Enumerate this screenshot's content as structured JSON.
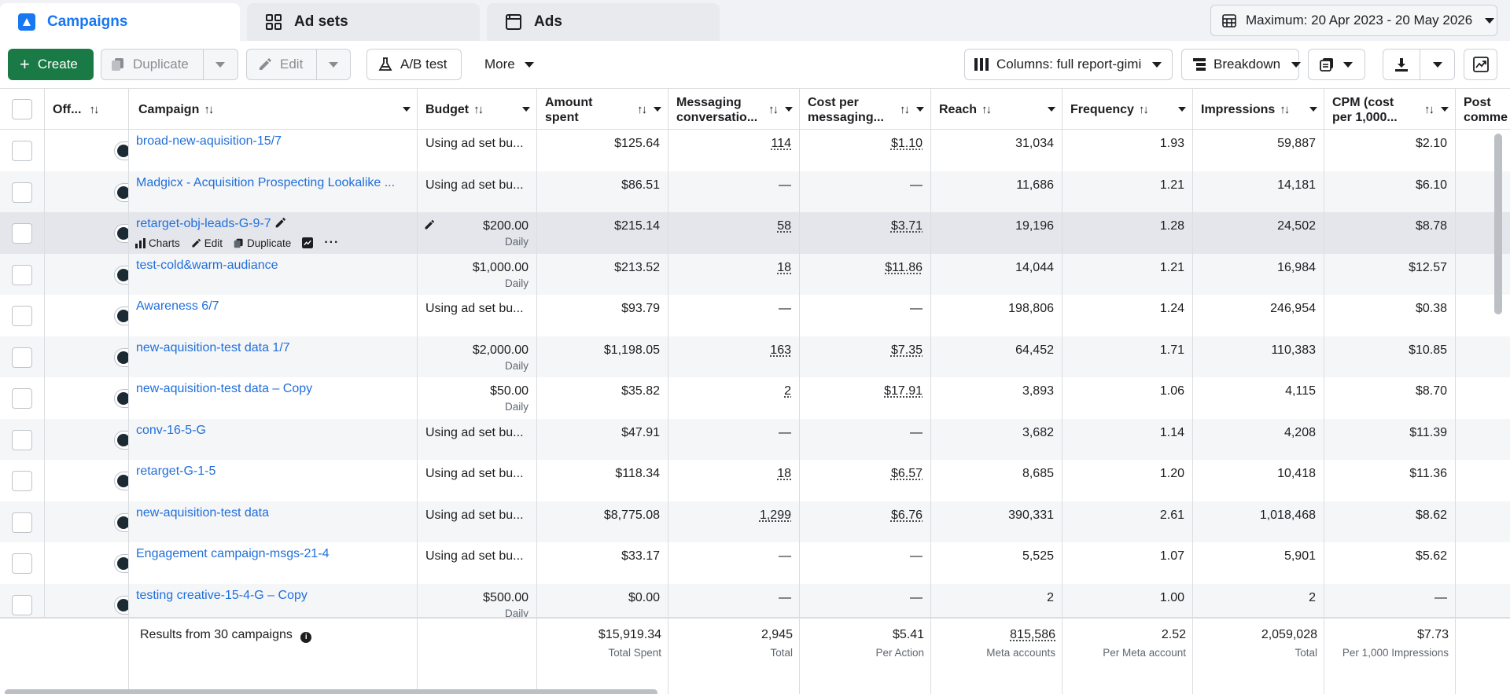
{
  "tabs": [
    {
      "label": "Campaigns",
      "icon": "campaign-icon",
      "active": true
    },
    {
      "label": "Ad sets",
      "icon": "ad-sets-grid-icon",
      "active": false
    },
    {
      "label": "Ads",
      "icon": "ads-window-icon",
      "active": false
    }
  ],
  "date_range": "Maximum: 20 Apr 2023 - 20 May 2026",
  "toolbar": {
    "create": "Create",
    "duplicate": "Duplicate",
    "edit": "Edit",
    "ab_test": "A/B test",
    "more": "More",
    "columns": "Columns: full report-gimi",
    "breakdown": "Breakdown"
  },
  "columns": {
    "off": "Off...",
    "campaign": "Campaign",
    "budget": "Budget",
    "amount_spent": "Amount spent",
    "messaging": "Messaging conversatio...",
    "cost_per_msg": "Cost per messaging...",
    "reach": "Reach",
    "frequency": "Frequency",
    "impressions": "Impressions",
    "cpm": "CPM (cost per 1,000...",
    "post": "Post comme"
  },
  "sort_glyph": "↑↓",
  "row_actions": {
    "charts": "Charts",
    "edit": "Edit",
    "duplicate": "Duplicate",
    "more": "···"
  },
  "rows": [
    {
      "name": "broad-new-aquisition-15/7",
      "budget": "Using ad set bu...",
      "budget_sub": "",
      "spent": "$125.64",
      "msg": "114",
      "cpm_msg": "$1.10",
      "reach": "31,034",
      "freq": "1.93",
      "impr": "59,887",
      "cpm": "$2.10"
    },
    {
      "name": "Madgicx - Acquisition Prospecting Lookalike ...",
      "budget": "Using ad set bu...",
      "budget_sub": "",
      "spent": "$86.51",
      "msg": "—",
      "cpm_msg": "—",
      "reach": "11,686",
      "freq": "1.21",
      "impr": "14,181",
      "cpm": "$6.10"
    },
    {
      "name": "retarget-obj-leads-G-9-7",
      "budget": "$200.00",
      "budget_sub": "Daily",
      "spent": "$215.14",
      "msg": "58",
      "cpm_msg": "$3.71",
      "reach": "19,196",
      "freq": "1.28",
      "impr": "24,502",
      "cpm": "$8.78"
    },
    {
      "name": "test-cold&warm-audiance",
      "budget": "$1,000.00",
      "budget_sub": "Daily",
      "spent": "$213.52",
      "msg": "18",
      "cpm_msg": "$11.86",
      "reach": "14,044",
      "freq": "1.21",
      "impr": "16,984",
      "cpm": "$12.57"
    },
    {
      "name": "Awareness 6/7",
      "budget": "Using ad set bu...",
      "budget_sub": "",
      "spent": "$93.79",
      "msg": "—",
      "cpm_msg": "—",
      "reach": "198,806",
      "freq": "1.24",
      "impr": "246,954",
      "cpm": "$0.38"
    },
    {
      "name": "new-aquisition-test data 1/7",
      "budget": "$2,000.00",
      "budget_sub": "Daily",
      "spent": "$1,198.05",
      "msg": "163",
      "cpm_msg": "$7.35",
      "reach": "64,452",
      "freq": "1.71",
      "impr": "110,383",
      "cpm": "$10.85"
    },
    {
      "name": "new-aquisition-test data – Copy",
      "budget": "$50.00",
      "budget_sub": "Daily",
      "spent": "$35.82",
      "msg": "2",
      "cpm_msg": "$17.91",
      "reach": "3,893",
      "freq": "1.06",
      "impr": "4,115",
      "cpm": "$8.70"
    },
    {
      "name": "conv-16-5-G",
      "budget": "Using ad set bu...",
      "budget_sub": "",
      "spent": "$47.91",
      "msg": "—",
      "cpm_msg": "—",
      "reach": "3,682",
      "freq": "1.14",
      "impr": "4,208",
      "cpm": "$11.39"
    },
    {
      "name": "retarget-G-1-5",
      "budget": "Using ad set bu...",
      "budget_sub": "",
      "spent": "$118.34",
      "msg": "18",
      "cpm_msg": "$6.57",
      "reach": "8,685",
      "freq": "1.20",
      "impr": "10,418",
      "cpm": "$11.36"
    },
    {
      "name": "new-aquisition-test data",
      "budget": "Using ad set bu...",
      "budget_sub": "",
      "spent": "$8,775.08",
      "msg": "1,299",
      "cpm_msg": "$6.76",
      "reach": "390,331",
      "freq": "2.61",
      "impr": "1,018,468",
      "cpm": "$8.62"
    },
    {
      "name": "Engagement campaign-msgs-21-4",
      "budget": "Using ad set bu...",
      "budget_sub": "",
      "spent": "$33.17",
      "msg": "—",
      "cpm_msg": "—",
      "reach": "5,525",
      "freq": "1.07",
      "impr": "5,901",
      "cpm": "$5.62"
    },
    {
      "name": "testing creative-15-4-G – Copy",
      "budget": "$500.00",
      "budget_sub": "Daily",
      "spent": "$0.00",
      "msg": "—",
      "cpm_msg": "—",
      "reach": "2",
      "freq": "1.00",
      "impr": "2",
      "cpm": "—"
    }
  ],
  "footer": {
    "results_label": "Results from 30 campaigns",
    "spent": "$15,919.34",
    "spent_sub": "Total Spent",
    "msg": "2,945",
    "msg_sub": "Total",
    "cost": "$5.41",
    "cost_sub": "Per Action",
    "reach": "815,586",
    "reach_sub": "Meta accounts",
    "freq": "2.52",
    "freq_sub": "Per Meta account",
    "impr": "2,059,028",
    "impr_sub": "Total",
    "cpm": "$7.73",
    "cpm_sub": "Per 1,000 Impressions"
  },
  "colors": {
    "accent": "#1877f2",
    "create_button": "#1a7a45",
    "link": "#216fdb"
  }
}
